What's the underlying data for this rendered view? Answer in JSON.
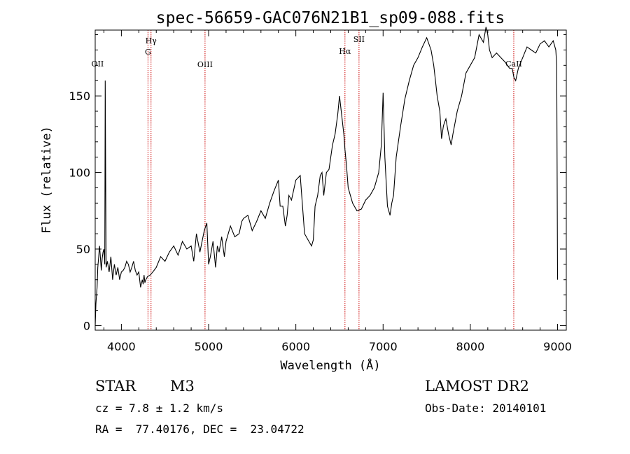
{
  "title": "spec-56659-GAC076N21B1_sp09-088.fits",
  "object_class": "STAR",
  "subclass": "M3",
  "survey": "LAMOST DR2",
  "redshift_text": "cz = 7.8 ± 1.2 km/s",
  "obs_date_text": "Obs-Date: 20140101",
  "coords_text": "RA =  77.40176, DEC =  23.04722",
  "chart_data": {
    "type": "line",
    "title": "spec-56659-GAC076N21B1_sp09-088.fits",
    "xlabel": "Wavelength (Å)",
    "ylabel": "Flux (relative)",
    "xlim": [
      3700,
      9100
    ],
    "ylim": [
      -3,
      193
    ],
    "xticks": [
      4000,
      5000,
      6000,
      7000,
      8000,
      9000
    ],
    "yticks": [
      0,
      50,
      100,
      150
    ],
    "grid": false,
    "line_color": "#000000",
    "marker_color": "#cc0000",
    "spectral_lines": [
      {
        "name": "OII",
        "wavelength": 3727
      },
      {
        "name": "Hγ",
        "wavelength": 4340
      },
      {
        "name": "G",
        "wavelength": 4305
      },
      {
        "name": "OIII",
        "wavelength": 4959
      },
      {
        "name": "Hα",
        "wavelength": 6563
      },
      {
        "name": "SII",
        "wavelength": 6724
      },
      {
        "name": "CaII",
        "wavelength": 8498
      }
    ],
    "series": [
      {
        "x": [
          3700,
          3708,
          3715,
          3722,
          3730,
          3740,
          3750,
          3760,
          3770,
          3780,
          3790,
          3800,
          3810,
          3815,
          3825,
          3840,
          3860,
          3880,
          3900,
          3920,
          3940,
          3960,
          3980,
          4000,
          4020,
          4040,
          4060,
          4080,
          4100,
          4120,
          4140,
          4160,
          4180,
          4200,
          4220,
          4240,
          4250,
          4260,
          4270,
          4280,
          4300,
          4330,
          4360,
          4400,
          4450,
          4500,
          4550,
          4600,
          4650,
          4700,
          4750,
          4800,
          4830,
          4860,
          4900,
          4950,
          4980,
          5000,
          5020,
          5050,
          5080,
          5100,
          5120,
          5150,
          5180,
          5200,
          5250,
          5300,
          5350,
          5380,
          5400,
          5450,
          5500,
          5550,
          5600,
          5650,
          5700,
          5750,
          5800,
          5820,
          5850,
          5880,
          5900,
          5920,
          5950,
          6000,
          6050,
          6100,
          6150,
          6180,
          6200,
          6220,
          6250,
          6280,
          6300,
          6320,
          6350,
          6380,
          6400,
          6420,
          6450,
          6480,
          6500,
          6550,
          6563,
          6580,
          6600,
          6650,
          6700,
          6750,
          6800,
          6850,
          6900,
          6950,
          6980,
          7000,
          7020,
          7050,
          7080,
          7100,
          7120,
          7150,
          7200,
          7250,
          7300,
          7350,
          7400,
          7450,
          7500,
          7550,
          7580,
          7600,
          7620,
          7650,
          7670,
          7690,
          7700,
          7720,
          7750,
          7780,
          7800,
          7850,
          7900,
          7950,
          8000,
          8050,
          8100,
          8150,
          8180,
          8200,
          8220,
          8250,
          8300,
          8350,
          8400,
          8450,
          8480,
          8500,
          8520,
          8550,
          8600,
          8650,
          8700,
          8750,
          8800,
          8850,
          8900,
          8950,
          8980,
          8990,
          8995,
          9000
        ],
        "y": [
          0,
          14,
          20,
          25,
          38,
          45,
          52,
          44,
          36,
          44,
          48,
          50,
          40,
          160,
          38,
          42,
          35,
          45,
          30,
          40,
          33,
          38,
          30,
          35,
          36,
          38,
          42,
          40,
          35,
          38,
          42,
          36,
          33,
          35,
          25,
          30,
          27,
          33,
          28,
          30,
          32,
          33,
          35,
          38,
          45,
          42,
          48,
          52,
          46,
          55,
          50,
          52,
          42,
          60,
          48,
          62,
          67,
          40,
          45,
          55,
          38,
          52,
          48,
          58,
          45,
          55,
          65,
          58,
          60,
          68,
          70,
          72,
          62,
          68,
          75,
          70,
          80,
          88,
          95,
          78,
          78,
          65,
          72,
          85,
          82,
          95,
          98,
          60,
          55,
          52,
          56,
          78,
          85,
          98,
          100,
          85,
          100,
          102,
          110,
          118,
          125,
          138,
          150,
          125,
          115,
          105,
          90,
          80,
          75,
          76,
          82,
          85,
          90,
          100,
          118,
          152,
          110,
          78,
          72,
          80,
          85,
          110,
          130,
          148,
          160,
          170,
          175,
          182,
          188,
          180,
          170,
          160,
          150,
          140,
          122,
          130,
          132,
          135,
          125,
          118,
          125,
          140,
          150,
          165,
          170,
          175,
          190,
          185,
          195,
          190,
          180,
          175,
          178,
          175,
          172,
          168,
          168,
          162,
          160,
          168,
          175,
          182,
          180,
          178,
          184,
          186,
          182,
          186,
          180,
          170,
          100,
          30
        ]
      }
    ]
  }
}
